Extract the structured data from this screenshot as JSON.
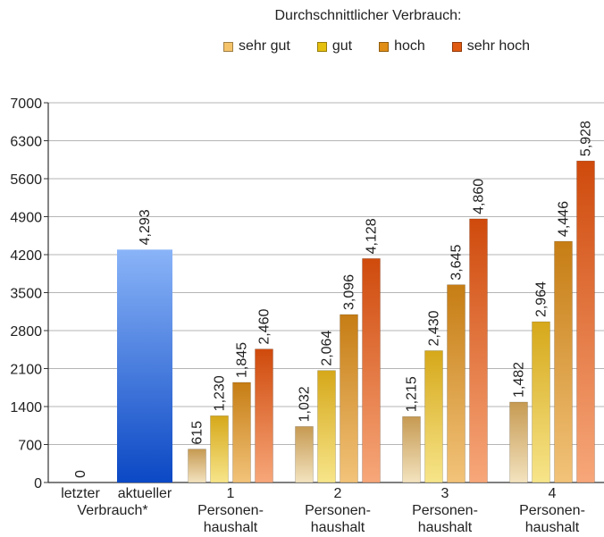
{
  "legend": {
    "title": "Durchschnittlicher Verbrauch:",
    "items": [
      {
        "label": "sehr gut",
        "color": "#f5c46a"
      },
      {
        "label": "gut",
        "color": "#e6c00e"
      },
      {
        "label": "hoch",
        "color": "#e08e15"
      },
      {
        "label": "sehr hoch",
        "color": "#e05a12"
      }
    ]
  },
  "chart_data": {
    "type": "bar",
    "title": "",
    "xlabel": "",
    "ylabel": "",
    "ylim": [
      0,
      7000
    ],
    "yticks": [
      0,
      700,
      1400,
      2100,
      2800,
      3500,
      4200,
      4900,
      5600,
      6300,
      7000
    ],
    "grid": true,
    "legend_position": "top",
    "groups": [
      {
        "label_lines": [
          "letzter",
          ""
        ],
        "bars": [
          {
            "series": "letzter Verbrauch",
            "value": 0,
            "label": "0",
            "color": "#4a86e8"
          }
        ]
      },
      {
        "label_lines": [
          "aktueller",
          ""
        ],
        "bars": [
          {
            "series": "aktueller Verbrauch",
            "value": 4293,
            "label": "4,293",
            "color": "#3f7fe6"
          }
        ]
      },
      {
        "label_lines": [
          "1",
          "Personen-",
          "haushalt"
        ],
        "bars": [
          {
            "series": "sehr gut",
            "value": 615,
            "label": "615"
          },
          {
            "series": "gut",
            "value": 1230,
            "label": "1,230"
          },
          {
            "series": "hoch",
            "value": 1845,
            "label": "1,845"
          },
          {
            "series": "sehr hoch",
            "value": 2460,
            "label": "2,460"
          }
        ]
      },
      {
        "label_lines": [
          "2",
          "Personen-",
          "haushalt"
        ],
        "bars": [
          {
            "series": "sehr gut",
            "value": 1032,
            "label": "1,032"
          },
          {
            "series": "gut",
            "value": 2064,
            "label": "2,064"
          },
          {
            "series": "hoch",
            "value": 3096,
            "label": "3,096"
          },
          {
            "series": "sehr hoch",
            "value": 4128,
            "label": "4,128"
          }
        ]
      },
      {
        "label_lines": [
          "3",
          "Personen-",
          "haushalt"
        ],
        "bars": [
          {
            "series": "sehr gut",
            "value": 1215,
            "label": "1,215"
          },
          {
            "series": "gut",
            "value": 2430,
            "label": "2,430"
          },
          {
            "series": "hoch",
            "value": 3645,
            "label": "3,645"
          },
          {
            "series": "sehr hoch",
            "value": 4860,
            "label": "4,860"
          }
        ]
      },
      {
        "label_lines": [
          "4",
          "Personen-",
          "haushalt"
        ],
        "bars": [
          {
            "series": "sehr gut",
            "value": 1482,
            "label": "1,482"
          },
          {
            "series": "gut",
            "value": 2964,
            "label": "2,964"
          },
          {
            "series": "hoch",
            "value": 4446,
            "label": "4,446"
          },
          {
            "series": "sehr hoch",
            "value": 5928,
            "label": "5,928"
          }
        ]
      }
    ],
    "shared_label": "Verbrauch*"
  }
}
